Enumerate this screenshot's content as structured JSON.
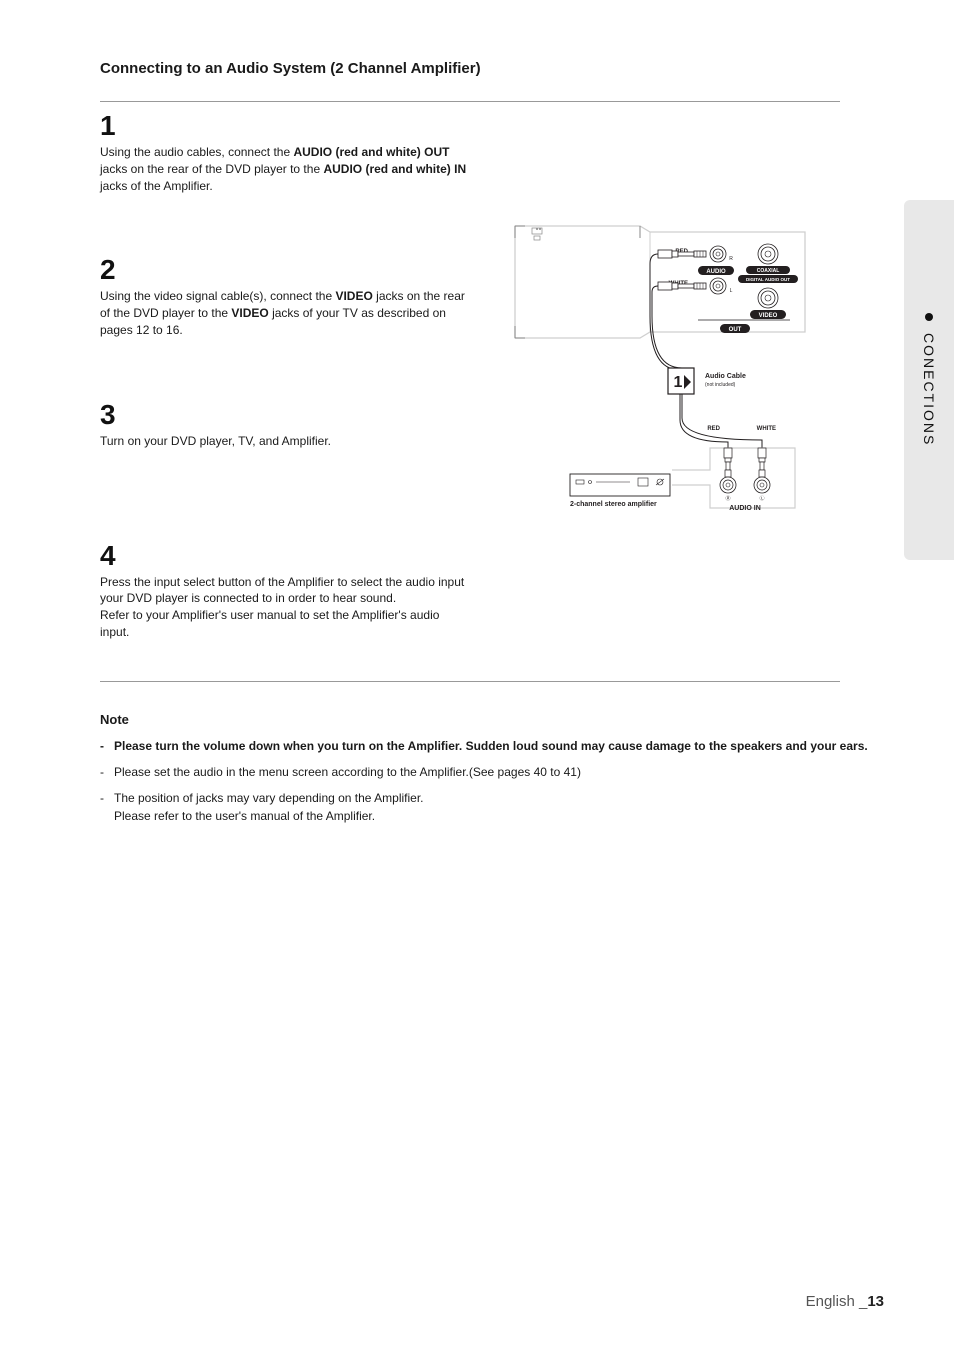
{
  "title": "Connecting to an Audio System (2 Channel Amplifier)",
  "side_tab": "CONECTIONS",
  "steps": [
    {
      "num": "1",
      "html": "Using the audio cables, connect the <b>AUDIO (red and white) OUT</b> jacks on the rear of the DVD player to the <b>AUDIO (red and white) IN</b> jacks of the Amplifier."
    },
    {
      "num": "2",
      "html": "Using the video signal cable(s), connect the <b>VIDEO</b> jacks on the rear of the DVD player to the <b>VIDEO</b> jacks of your TV as described on pages 12 to 16."
    },
    {
      "num": "3",
      "html": "Turn on your DVD player, TV, and Amplifier."
    },
    {
      "num": "4",
      "html": "Press the input select button of the Amplifier to select the audio input your DVD player is connected to in order to hear sound.<br>Refer to your Amplifier's user manual to set the Amplifier's audio input."
    }
  ],
  "note_heading": "Note",
  "notes": [
    {
      "bold": true,
      "text": "Please turn the volume down when you turn on the Amplifier. Sudden loud sound may cause  damage to the speakers and your ears."
    },
    {
      "bold": false,
      "text": "Please set the audio in the menu screen according to the Amplifier.(See pages 40 to 41)"
    },
    {
      "bold": false,
      "text": "The position of jacks may vary depending on the Amplifier.\nPlease refer to the user's manual of the Amplifier."
    }
  ],
  "footer": {
    "lang": "English",
    "sep": "_",
    "page": "13"
  },
  "diagram": {
    "labels": {
      "red": "RED",
      "white": "WHITE",
      "audio": "AUDIO",
      "video": "VIDEO",
      "out": "OUT",
      "coaxial": "COAXIAL",
      "digital_audio_out": "DIGITAL AUDIO OUT",
      "audio_cable": "Audio Cable",
      "not_included": "(not included)",
      "audio_in": "AUDIO IN",
      "amp": "2-channel stereo amplifier",
      "r": "R",
      "l": "L"
    },
    "colors": {
      "outline": "#231f20",
      "pill": "#231f20",
      "bg": "#ffffff",
      "gray": "#cfcfcf"
    },
    "arrow_marker": "1"
  }
}
